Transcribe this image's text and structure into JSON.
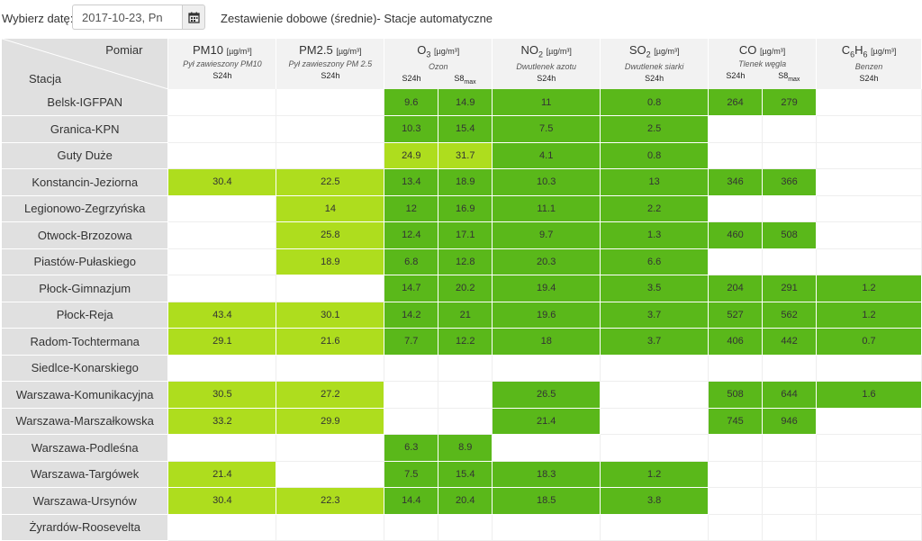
{
  "toolbar": {
    "date_label": "Wybierz datę:",
    "date_value": "2017-10-23, Pn",
    "calendar_icon": "calendar-icon",
    "title": "Zestawienie dobowe (średnie)- Stacje automatyczne"
  },
  "header": {
    "corner_top": "Pomiar",
    "corner_bottom": "Stacja",
    "pm10": {
      "name": "PM10",
      "unit": "[µg/m³]",
      "desc": "Pył zawieszony PM10",
      "col": "S24h"
    },
    "pm25": {
      "name": "PM2.5",
      "unit": "[µg/m³]",
      "desc": "Pył zawieszony PM 2.5",
      "col": "S24h"
    },
    "o3": {
      "name": "O",
      "sub": "3",
      "unit": "[µg/m³]",
      "desc": "Ozon",
      "col1": "S24h",
      "col2": "S8",
      "col2_sub": "max"
    },
    "no2": {
      "name": "NO",
      "sub": "2",
      "unit": "[µg/m³]",
      "desc": "Dwutlenek azotu",
      "col": "S24h"
    },
    "so2": {
      "name": "SO",
      "sub": "2",
      "unit": "[µg/m³]",
      "desc": "Dwutlenek siarki",
      "col": "S24h"
    },
    "co": {
      "name": "CO",
      "unit": "[µg/m³]",
      "desc": "Tlenek węgla",
      "col1": "S24h",
      "col2": "S8",
      "col2_sub": "max"
    },
    "c6h6": {
      "name": "C",
      "sub1": "6",
      "mid": "H",
      "sub2": "6",
      "unit": "[µg/m³]",
      "desc": "Benzen",
      "col": "S24h"
    }
  },
  "colors": {
    "green": "#5ab81a",
    "light_green": "#aedd1e",
    "station_bg": "#e0e0e0"
  },
  "rows": [
    {
      "station": "Belsk-IGFPAN",
      "cells": [
        [
          "",
          ""
        ],
        [
          "",
          ""
        ],
        [
          "9.6",
          "g"
        ],
        [
          "14.9",
          "g"
        ],
        [
          "11",
          "g"
        ],
        [
          "0.8",
          "g"
        ],
        [
          "264",
          "g"
        ],
        [
          "279",
          "g"
        ],
        [
          "",
          ""
        ]
      ]
    },
    {
      "station": "Granica-KPN",
      "cells": [
        [
          "",
          ""
        ],
        [
          "",
          ""
        ],
        [
          "10.3",
          "g"
        ],
        [
          "15.4",
          "g"
        ],
        [
          "7.5",
          "g"
        ],
        [
          "2.5",
          "g"
        ],
        [
          "",
          ""
        ],
        [
          "",
          ""
        ],
        [
          "",
          ""
        ]
      ]
    },
    {
      "station": "Guty Duże",
      "cells": [
        [
          "",
          ""
        ],
        [
          "",
          ""
        ],
        [
          "24.9",
          "lg"
        ],
        [
          "31.7",
          "lg"
        ],
        [
          "4.1",
          "g"
        ],
        [
          "0.8",
          "g"
        ],
        [
          "",
          ""
        ],
        [
          "",
          ""
        ],
        [
          "",
          ""
        ]
      ]
    },
    {
      "station": "Konstancin-Jeziorna",
      "cells": [
        [
          "30.4",
          "lg"
        ],
        [
          "22.5",
          "lg"
        ],
        [
          "13.4",
          "g"
        ],
        [
          "18.9",
          "g"
        ],
        [
          "10.3",
          "g"
        ],
        [
          "13",
          "g"
        ],
        [
          "346",
          "g"
        ],
        [
          "366",
          "g"
        ],
        [
          "",
          ""
        ]
      ]
    },
    {
      "station": "Legionowo-Zegrzyńska",
      "cells": [
        [
          "",
          ""
        ],
        [
          "14",
          "lg"
        ],
        [
          "12",
          "g"
        ],
        [
          "16.9",
          "g"
        ],
        [
          "11.1",
          "g"
        ],
        [
          "2.2",
          "g"
        ],
        [
          "",
          ""
        ],
        [
          "",
          ""
        ],
        [
          "",
          ""
        ]
      ]
    },
    {
      "station": "Otwock-Brzozowa",
      "cells": [
        [
          "",
          ""
        ],
        [
          "25.8",
          "lg"
        ],
        [
          "12.4",
          "g"
        ],
        [
          "17.1",
          "g"
        ],
        [
          "9.7",
          "g"
        ],
        [
          "1.3",
          "g"
        ],
        [
          "460",
          "g"
        ],
        [
          "508",
          "g"
        ],
        [
          "",
          ""
        ]
      ]
    },
    {
      "station": "Piastów-Pułaskiego",
      "cells": [
        [
          "",
          ""
        ],
        [
          "18.9",
          "lg"
        ],
        [
          "6.8",
          "g"
        ],
        [
          "12.8",
          "g"
        ],
        [
          "20.3",
          "g"
        ],
        [
          "6.6",
          "g"
        ],
        [
          "",
          ""
        ],
        [
          "",
          ""
        ],
        [
          "",
          ""
        ]
      ]
    },
    {
      "station": "Płock-Gimnazjum",
      "cells": [
        [
          "",
          ""
        ],
        [
          "",
          ""
        ],
        [
          "14.7",
          "g"
        ],
        [
          "20.2",
          "g"
        ],
        [
          "19.4",
          "g"
        ],
        [
          "3.5",
          "g"
        ],
        [
          "204",
          "g"
        ],
        [
          "291",
          "g"
        ],
        [
          "1.2",
          "g"
        ]
      ]
    },
    {
      "station": "Płock-Reja",
      "cells": [
        [
          "43.4",
          "lg"
        ],
        [
          "30.1",
          "lg"
        ],
        [
          "14.2",
          "g"
        ],
        [
          "21",
          "g"
        ],
        [
          "19.6",
          "g"
        ],
        [
          "3.7",
          "g"
        ],
        [
          "527",
          "g"
        ],
        [
          "562",
          "g"
        ],
        [
          "1.2",
          "g"
        ]
      ]
    },
    {
      "station": "Radom-Tochtermana",
      "cells": [
        [
          "29.1",
          "lg"
        ],
        [
          "21.6",
          "lg"
        ],
        [
          "7.7",
          "g"
        ],
        [
          "12.2",
          "g"
        ],
        [
          "18",
          "g"
        ],
        [
          "3.7",
          "g"
        ],
        [
          "406",
          "g"
        ],
        [
          "442",
          "g"
        ],
        [
          "0.7",
          "g"
        ]
      ]
    },
    {
      "station": "Siedlce-Konarskiego",
      "cells": [
        [
          "",
          ""
        ],
        [
          "",
          ""
        ],
        [
          "",
          ""
        ],
        [
          "",
          ""
        ],
        [
          "",
          ""
        ],
        [
          "",
          ""
        ],
        [
          "",
          ""
        ],
        [
          "",
          ""
        ],
        [
          "",
          ""
        ]
      ]
    },
    {
      "station": "Warszawa-Komunikacyjna",
      "cells": [
        [
          "30.5",
          "lg"
        ],
        [
          "27.2",
          "lg"
        ],
        [
          "",
          ""
        ],
        [
          "",
          ""
        ],
        [
          "26.5",
          "g"
        ],
        [
          "",
          ""
        ],
        [
          "508",
          "g"
        ],
        [
          "644",
          "g"
        ],
        [
          "1.6",
          "g"
        ]
      ]
    },
    {
      "station": "Warszawa-Marszałkowska",
      "cells": [
        [
          "33.2",
          "lg"
        ],
        [
          "29.9",
          "lg"
        ],
        [
          "",
          ""
        ],
        [
          "",
          ""
        ],
        [
          "21.4",
          "g"
        ],
        [
          "",
          ""
        ],
        [
          "745",
          "g"
        ],
        [
          "946",
          "g"
        ],
        [
          "",
          ""
        ]
      ]
    },
    {
      "station": "Warszawa-Podleśna",
      "cells": [
        [
          "",
          ""
        ],
        [
          "",
          ""
        ],
        [
          "6.3",
          "g"
        ],
        [
          "8.9",
          "g"
        ],
        [
          "",
          ""
        ],
        [
          "",
          ""
        ],
        [
          "",
          ""
        ],
        [
          "",
          ""
        ],
        [
          "",
          ""
        ]
      ]
    },
    {
      "station": "Warszawa-Targówek",
      "cells": [
        [
          "21.4",
          "lg"
        ],
        [
          "",
          ""
        ],
        [
          "7.5",
          "g"
        ],
        [
          "15.4",
          "g"
        ],
        [
          "18.3",
          "g"
        ],
        [
          "1.2",
          "g"
        ],
        [
          "",
          ""
        ],
        [
          "",
          ""
        ],
        [
          "",
          ""
        ]
      ]
    },
    {
      "station": "Warszawa-Ursynów",
      "cells": [
        [
          "30.4",
          "lg"
        ],
        [
          "22.3",
          "lg"
        ],
        [
          "14.4",
          "g"
        ],
        [
          "20.4",
          "g"
        ],
        [
          "18.5",
          "g"
        ],
        [
          "3.8",
          "g"
        ],
        [
          "",
          ""
        ],
        [
          "",
          ""
        ],
        [
          "",
          ""
        ]
      ]
    },
    {
      "station": "Żyrardów-Roosevelta",
      "cells": [
        [
          "",
          ""
        ],
        [
          "",
          ""
        ],
        [
          "",
          ""
        ],
        [
          "",
          ""
        ],
        [
          "",
          ""
        ],
        [
          "",
          ""
        ],
        [
          "",
          ""
        ],
        [
          "",
          ""
        ],
        [
          "",
          ""
        ]
      ]
    }
  ]
}
